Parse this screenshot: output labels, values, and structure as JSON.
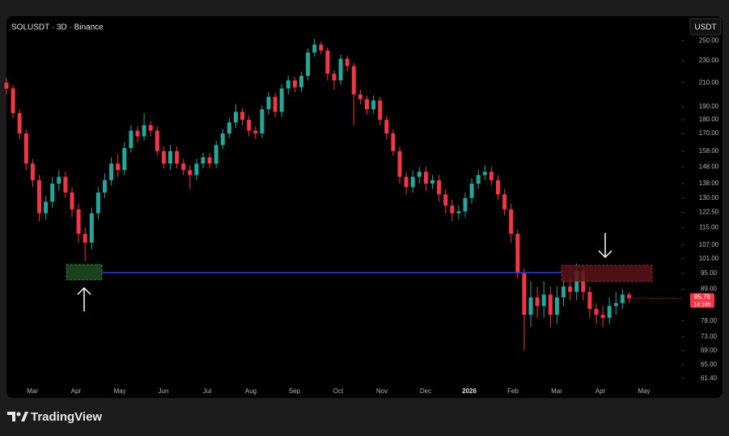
{
  "chart_data": {
    "type": "candlestick",
    "title": "SOLUSDT · 3D · Binance",
    "currency_button": "USDT",
    "log_scale": true,
    "up_color": "#26a69a",
    "down_color": "#f23645",
    "x_labels": [
      "Mar",
      "Apr",
      "May",
      "Jun",
      "Jul",
      "Aug",
      "Sep",
      "Oct",
      "Nov",
      "Dec",
      "2026",
      "Feb",
      "Mar",
      "Apr",
      "May"
    ],
    "ylim": [
      57,
      275
    ],
    "yticks": [
      {
        "value": 250,
        "label": "250.00"
      },
      {
        "value": 230,
        "label": "230.00"
      },
      {
        "value": 210,
        "label": "210.00"
      },
      {
        "value": 190,
        "label": "190.00"
      },
      {
        "value": 180,
        "label": "180.00"
      },
      {
        "value": 170,
        "label": "170.00"
      },
      {
        "value": 158,
        "label": "158.00"
      },
      {
        "value": 148,
        "label": "148.00"
      },
      {
        "value": 138,
        "label": "138.00"
      },
      {
        "value": 130,
        "label": "130.00"
      },
      {
        "value": 122.5,
        "label": "122.50"
      },
      {
        "value": 115,
        "label": "115.00"
      },
      {
        "value": 107,
        "label": "107.00"
      },
      {
        "value": 101,
        "label": "101.00"
      },
      {
        "value": 95,
        "label": "95.00"
      },
      {
        "value": 89,
        "label": "89.00"
      },
      {
        "value": 78,
        "label": "78.00"
      },
      {
        "value": 73,
        "label": "73.00"
      },
      {
        "value": 69,
        "label": "69.00"
      },
      {
        "value": 65,
        "label": "65.00"
      },
      {
        "value": 61.4,
        "label": "61.40"
      }
    ],
    "open": [
      210,
      205,
      185,
      170,
      150,
      140,
      122,
      128,
      138,
      142,
      133,
      124,
      112,
      108,
      122,
      133,
      140,
      150,
      146,
      160,
      172,
      168,
      176,
      172,
      158,
      150,
      158,
      150,
      146,
      143,
      150,
      154,
      150,
      162,
      170,
      178,
      186,
      180,
      172,
      170,
      188,
      198,
      186,
      205,
      212,
      206,
      216,
      238,
      246,
      240,
      218,
      212,
      232,
      225,
      200,
      196,
      188,
      195,
      180,
      170,
      158,
      142,
      136,
      142,
      145,
      138,
      140,
      132,
      126,
      122,
      123,
      130,
      138,
      143,
      145,
      140,
      132,
      124,
      112,
      95,
      80,
      86,
      83,
      87,
      80,
      86,
      90,
      88,
      96,
      88,
      82,
      80,
      79,
      83,
      84,
      87
    ],
    "high": [
      214,
      208,
      188,
      173,
      153,
      143,
      131,
      142,
      146,
      145,
      136,
      127,
      115,
      125,
      136,
      144,
      154,
      156,
      164,
      176,
      175,
      185,
      179,
      175,
      161,
      162,
      161,
      153,
      149,
      153,
      157,
      157,
      165,
      173,
      181,
      192,
      189,
      183,
      175,
      191,
      202,
      201,
      209,
      216,
      215,
      220,
      242,
      252,
      249,
      243,
      221,
      236,
      235,
      228,
      204,
      199,
      199,
      198,
      183,
      173,
      161,
      145,
      146,
      148,
      148,
      143,
      143,
      135,
      129,
      126,
      133,
      141,
      146,
      149,
      148,
      143,
      135,
      127,
      114,
      97,
      92,
      90,
      92,
      90,
      90,
      94,
      93,
      99,
      98,
      90,
      84,
      83,
      86,
      88,
      89,
      88
    ],
    "low": [
      200,
      181,
      166,
      146,
      136,
      118,
      119,
      125,
      134,
      130,
      120,
      108,
      100,
      105,
      119,
      130,
      137,
      142,
      143,
      157,
      164,
      165,
      168,
      155,
      147,
      146,
      147,
      143,
      135,
      140,
      147,
      147,
      147,
      159,
      167,
      174,
      176,
      168,
      166,
      167,
      184,
      182,
      182,
      200,
      202,
      202,
      212,
      234,
      236,
      212,
      204,
      208,
      220,
      176,
      192,
      184,
      185,
      176,
      166,
      155,
      138,
      132,
      133,
      138,
      134,
      135,
      128,
      122,
      118,
      119,
      120,
      127,
      135,
      140,
      137,
      129,
      121,
      108,
      93,
      69,
      76,
      79,
      79,
      76,
      77,
      83,
      85,
      85,
      85,
      79,
      77,
      76,
      77,
      80,
      82,
      84
    ],
    "close": [
      205,
      185,
      170,
      150,
      140,
      122,
      128,
      138,
      142,
      133,
      124,
      112,
      108,
      122,
      133,
      140,
      150,
      146,
      160,
      172,
      168,
      176,
      172,
      158,
      150,
      158,
      150,
      146,
      143,
      150,
      154,
      150,
      162,
      170,
      178,
      186,
      180,
      172,
      170,
      188,
      198,
      186,
      205,
      212,
      206,
      216,
      238,
      246,
      240,
      218,
      212,
      232,
      225,
      200,
      196,
      188,
      195,
      180,
      170,
      158,
      142,
      136,
      142,
      145,
      138,
      140,
      132,
      126,
      122,
      123,
      130,
      138,
      143,
      145,
      140,
      132,
      124,
      112,
      95,
      80,
      86,
      83,
      87,
      80,
      86,
      90,
      88,
      96,
      88,
      82,
      80,
      79,
      83,
      84,
      87,
      85.78
    ],
    "last_price_countdown": "14:16h"
  },
  "branding": "TradingView"
}
